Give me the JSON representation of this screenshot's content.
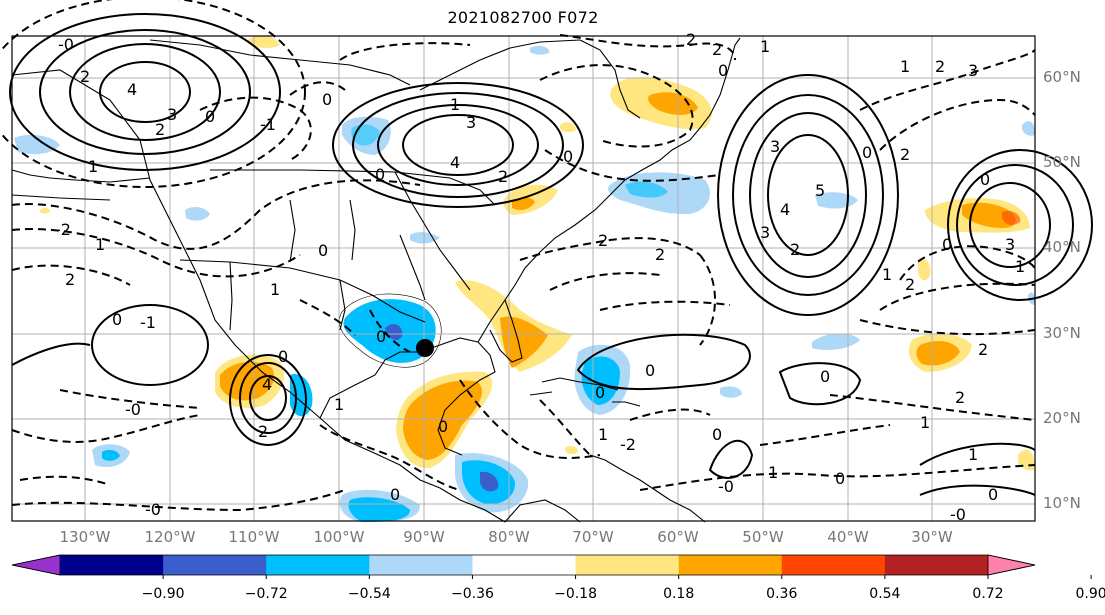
{
  "title": "2021082700 F072",
  "lat_labels": [
    "60°N",
    "50°N",
    "40°N",
    "30°N",
    "20°N",
    "10°N"
  ],
  "lon_labels": [
    "130°W",
    "120°W",
    "110°W",
    "100°W",
    "90°W",
    "80°W",
    "70°W",
    "60°W",
    "50°W",
    "40°W",
    "30°W"
  ],
  "colorbar": {
    "ticks": [
      "−0.90",
      "−0.72",
      "−0.54",
      "−0.36",
      "−0.18",
      "0.18",
      "0.36",
      "0.54",
      "0.72",
      "0.90"
    ],
    "colors": [
      "#9932cc",
      "#00008b",
      "#3a5fcd",
      "#00bfff",
      "#add8f7",
      "#ffffff",
      "#ffe680",
      "#ffa500",
      "#ff4500",
      "#b22222",
      "#ff82ab"
    ]
  },
  "contour_labels": [
    "0",
    "1",
    "2",
    "3",
    "-0",
    "-1",
    "-2",
    "4",
    "5"
  ],
  "colors": {
    "grid": "#b0b0b0",
    "coast": "#000000",
    "contour": "#000000",
    "tick_label": "#777777"
  },
  "marker": {
    "name": "point-marker",
    "lat": 28.5,
    "lon": -90.5
  }
}
